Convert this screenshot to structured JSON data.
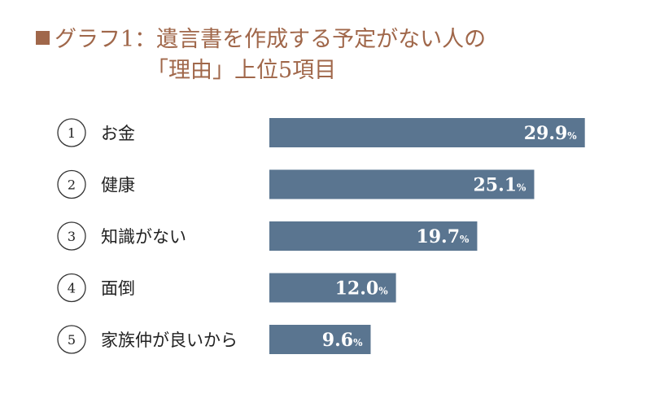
{
  "title": {
    "marker": "■",
    "line1": "グラフ1：遺言書を作成する予定がない人の",
    "line2": "「理由」上位5項目"
  },
  "colors": {
    "title": "#a0674a",
    "bar": "#5a7590",
    "value_text": "#ffffff"
  },
  "chart_data": {
    "type": "bar",
    "orientation": "horizontal",
    "ranks": [
      "1",
      "2",
      "3",
      "4",
      "5"
    ],
    "categories": [
      "お金",
      "健康",
      "知識がない",
      "面倒",
      "家族仲が良いから"
    ],
    "values": [
      29.9,
      25.1,
      19.7,
      12.0,
      9.6
    ],
    "value_labels": [
      "29.9",
      "25.1",
      "19.7",
      "12.0",
      "9.6"
    ],
    "unit": "%",
    "xlim": [
      0,
      30
    ],
    "grid": false
  }
}
